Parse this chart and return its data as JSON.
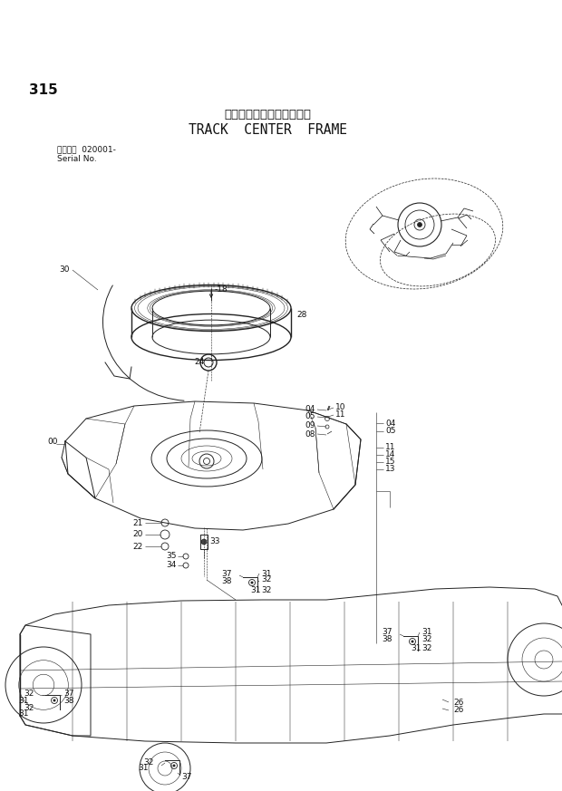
{
  "title_jp": "トラックセンターフレーム",
  "title_en": "TRACK  CENTER  FRAME",
  "page_num": "315",
  "serial_label": "適用号機  020001-",
  "serial_label2": "Serial No.",
  "bg_color": "#ffffff",
  "line_color": "#222222",
  "label_color": "#111111",
  "label_fontsize": 6.5,
  "title_fontsize_jp": 9.5,
  "title_fontsize_en": 10.5,
  "page_fontsize": 11
}
